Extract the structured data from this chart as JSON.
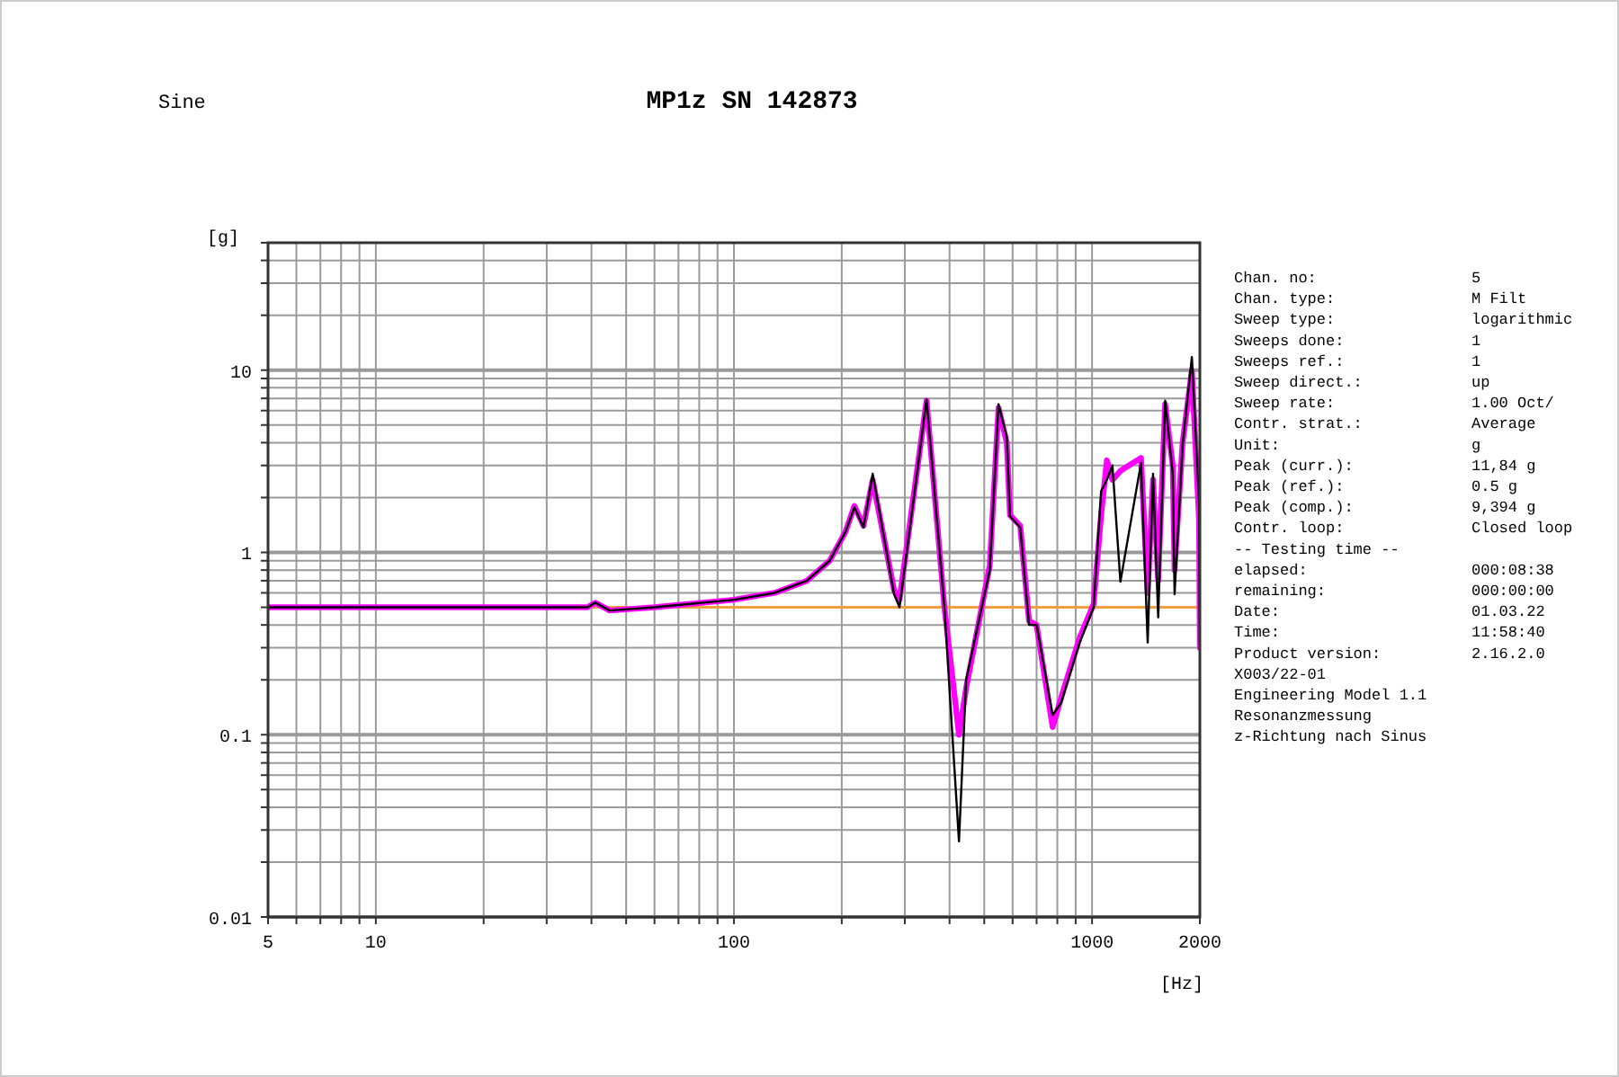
{
  "chart_data": {
    "type": "line",
    "title": "MP1z SN 142873",
    "subtitle": "Sine",
    "xlabel": "[Hz]",
    "ylabel": "[g]",
    "log": "xy",
    "grid": true,
    "marker": "none",
    "line_style": "solid",
    "xlim": [
      5,
      2000
    ],
    "ylim": [
      0.01,
      50
    ],
    "xticks": [
      5,
      {
        "value": 6,
        "label": null
      },
      {
        "value": 7,
        "label": null
      },
      {
        "value": 8,
        "label": null
      },
      {
        "value": 9,
        "label": null
      },
      10,
      {
        "value": 20,
        "label": null
      },
      {
        "value": 30,
        "label": null
      },
      {
        "value": 40,
        "label": null
      },
      {
        "value": 50,
        "label": null
      },
      {
        "value": 60,
        "label": null
      },
      {
        "value": 70,
        "label": null
      },
      {
        "value": 80,
        "label": null
      },
      {
        "value": 90,
        "label": null
      },
      100,
      {
        "value": 200,
        "label": null
      },
      {
        "value": 300,
        "label": null
      },
      {
        "value": 400,
        "label": null
      },
      {
        "value": 500,
        "label": null
      },
      {
        "value": 600,
        "label": null
      },
      {
        "value": 700,
        "label": null
      },
      {
        "value": 800,
        "label": null
      },
      {
        "value": 900,
        "label": null
      },
      1000,
      2000
    ],
    "yticks": [
      0.01,
      {
        "value": 0.02,
        "label": null
      },
      {
        "value": 0.03,
        "label": null
      },
      {
        "value": 0.04,
        "label": null
      },
      {
        "value": 0.05,
        "label": null
      },
      {
        "value": 0.06,
        "label": null
      },
      {
        "value": 0.07,
        "label": null
      },
      {
        "value": 0.08,
        "label": null
      },
      {
        "value": 0.09,
        "label": null
      },
      0.1,
      {
        "value": 0.2,
        "label": null
      },
      {
        "value": 0.3,
        "label": null
      },
      {
        "value": 0.4,
        "label": null
      },
      {
        "value": 0.5,
        "label": null
      },
      {
        "value": 0.6,
        "label": null
      },
      {
        "value": 0.7,
        "label": null
      },
      {
        "value": 0.8,
        "label": null
      },
      {
        "value": 0.9,
        "label": null
      },
      1,
      {
        "value": 2,
        "label": null
      },
      {
        "value": 3,
        "label": null
      },
      {
        "value": 4,
        "label": null
      },
      {
        "value": 5,
        "label": null
      },
      {
        "value": 6,
        "label": null
      },
      {
        "value": 7,
        "label": null
      },
      {
        "value": 8,
        "label": null
      },
      {
        "value": 9,
        "label": null
      },
      10,
      {
        "value": 20,
        "label": null
      },
      {
        "value": 30,
        "label": null
      },
      {
        "value": 40,
        "label": null
      },
      {
        "value": 50,
        "label": null
      }
    ],
    "ref_lines": [
      {
        "axis": "y",
        "value": 0.5,
        "color": "#f0a040"
      }
    ],
    "series": [
      {
        "color": "#ff00ff",
        "x": [
          5,
          20,
          39,
          41,
          45,
          60,
          100,
          130,
          160,
          185,
          205,
          217,
          230,
          244,
          280,
          290,
          345,
          387,
          425,
          445,
          518,
          548,
          578,
          590,
          630,
          667,
          700,
          776,
          820,
          923,
          1010,
          1060,
          1100,
          1140,
          1200,
          1370,
          1430,
          1480,
          1530,
          1600,
          1680,
          1700,
          1790,
          1900,
          1990,
          2000
        ],
        "values": [
          0.5,
          0.5,
          0.5,
          0.53,
          0.48,
          0.5,
          0.55,
          0.6,
          0.7,
          0.9,
          1.3,
          1.8,
          1.4,
          2.5,
          0.62,
          0.55,
          6.8,
          0.5,
          0.1,
          0.18,
          0.85,
          6.2,
          4.0,
          1.6,
          1.4,
          0.42,
          0.4,
          0.11,
          0.16,
          0.34,
          0.52,
          1.6,
          3.2,
          2.5,
          2.8,
          3.3,
          0.6,
          2.5,
          0.7,
          6.5,
          3.0,
          0.8,
          4.0,
          10,
          1.5,
          0.3
        ]
      },
      {
        "color": "#000000",
        "x": [
          5,
          20,
          39,
          41,
          45,
          60,
          100,
          130,
          160,
          185,
          205,
          217,
          230,
          244,
          280,
          290,
          345,
          387,
          425,
          445,
          518,
          548,
          578,
          590,
          630,
          667,
          700,
          776,
          820,
          923,
          1010,
          1060,
          1100,
          1140,
          1200,
          1370,
          1430,
          1480,
          1530,
          1600,
          1680,
          1700,
          1790,
          1900,
          1990,
          2000
        ],
        "values": [
          0.5,
          0.5,
          0.5,
          0.53,
          0.48,
          0.5,
          0.55,
          0.6,
          0.7,
          0.9,
          1.3,
          1.77,
          1.37,
          2.7,
          0.59,
          0.5,
          6.9,
          0.5,
          0.026,
          0.2,
          0.8,
          6.5,
          4.3,
          1.58,
          1.37,
          0.4,
          0.4,
          0.128,
          0.15,
          0.32,
          0.5,
          2.17,
          2.5,
          3.0,
          0.69,
          3.1,
          0.32,
          2.7,
          0.44,
          6.8,
          2.7,
          0.59,
          3.9,
          11.8,
          1.85,
          0.32
        ]
      }
    ],
    "annotations": [
      "Chan. no:\t5",
      "Chan. type:\tM Filt",
      "Sweep type:\tlogarithmic",
      "Sweeps done:\t1",
      "Sweeps ref.:\t1",
      "Sweep direct.:\tup",
      "Sweep rate:\t1.00 Oct/",
      "Contr. strat.:\tAverage",
      "Unit:\tg",
      "Peak (curr.):\t11,84 g",
      "Peak (ref.):\t0.5 g",
      "Peak (comp.):\t9,394 g",
      "Contr. loop:\tClosed loop",
      "-- Testing time --",
      "elapsed:\t000:08:38",
      "remaining:\t000:00:00",
      "Date:\t01.03.22",
      "Time:\t11:58:40",
      "Product version:\t2.16.2.0",
      "X003/22-01",
      "Engineering Model 1.1",
      "Resonanzmessung",
      "z-Richtung nach Sinus"
    ]
  }
}
